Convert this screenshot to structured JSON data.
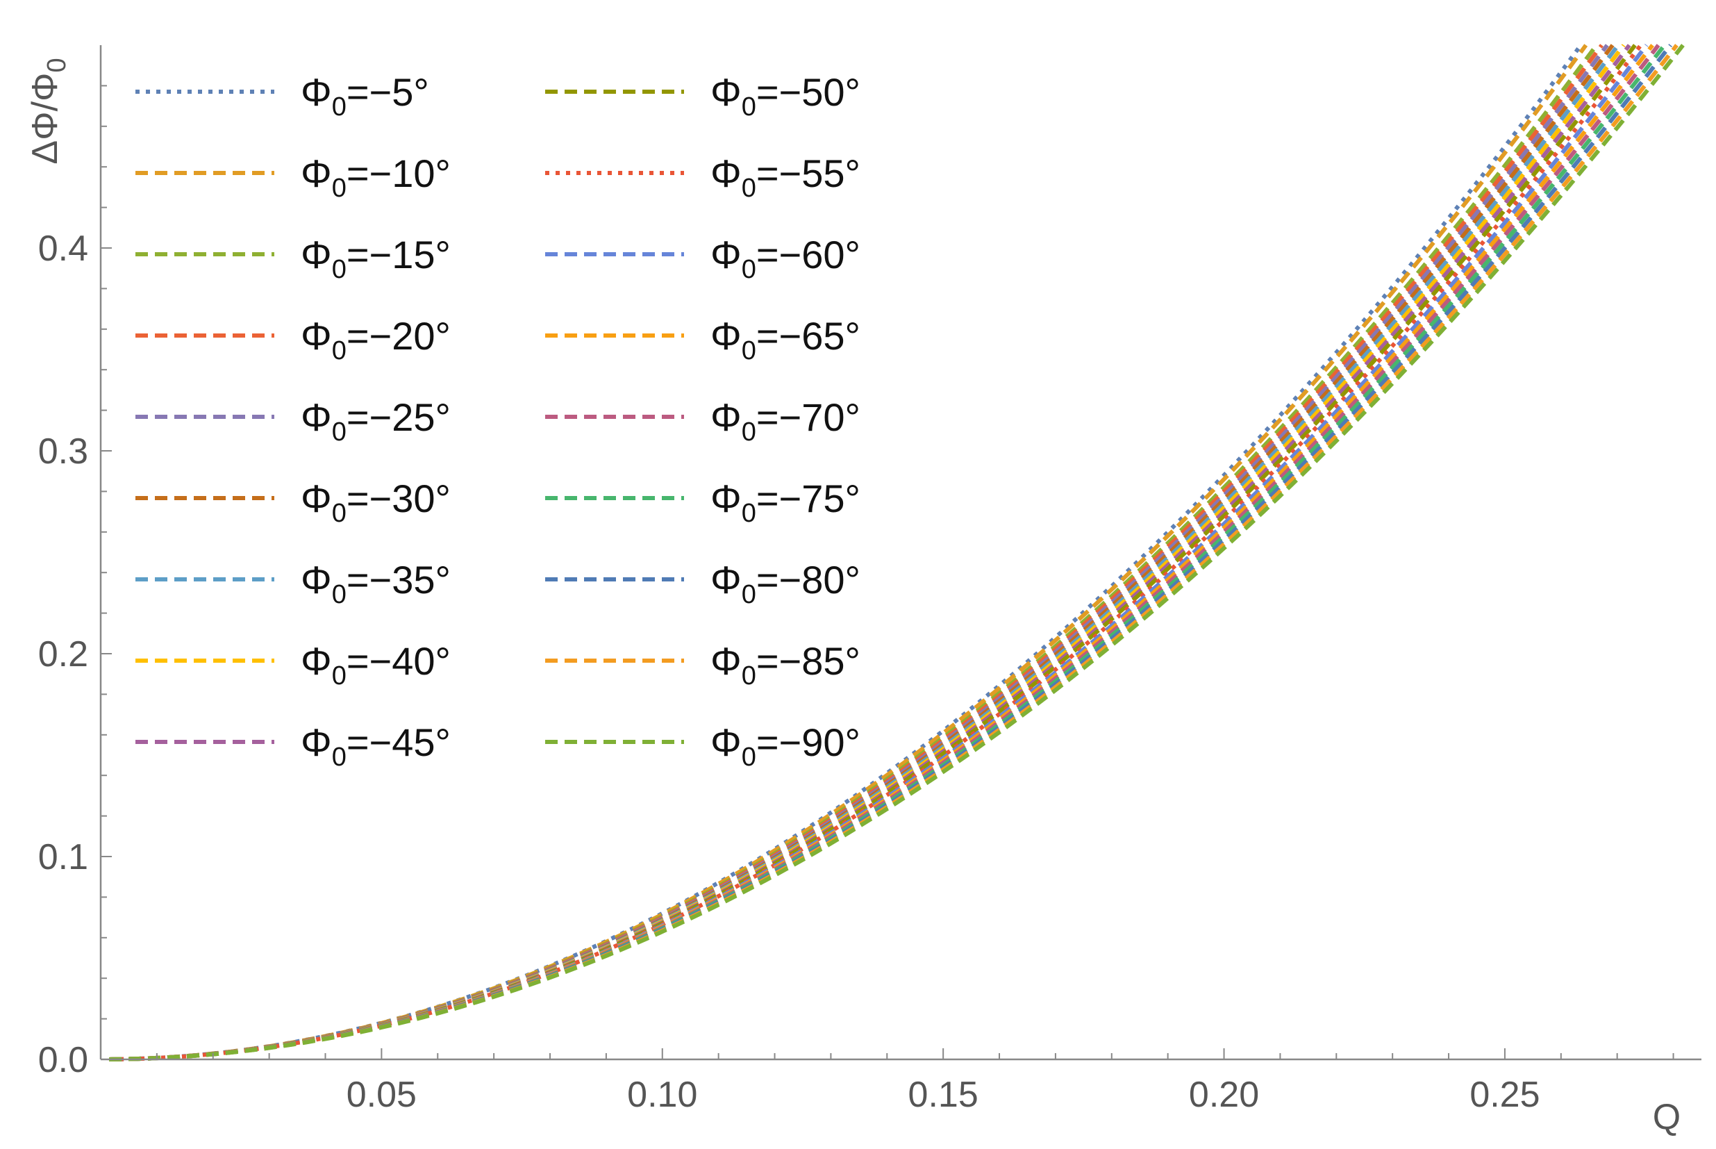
{
  "chart_data": {
    "type": "line",
    "xlabel": "Q",
    "ylabel_main": "ΔΦ/Φ",
    "ylabel_sub": "0",
    "xlim": [
      0,
      0.285
    ],
    "ylim": [
      0,
      0.5
    ],
    "x_ticks": [
      {
        "value": 0.05,
        "label": "0.05"
      },
      {
        "value": 0.1,
        "label": "0.10"
      },
      {
        "value": 0.15,
        "label": "0.15"
      },
      {
        "value": 0.2,
        "label": "0.20"
      },
      {
        "value": 0.25,
        "label": "0.25"
      }
    ],
    "y_ticks": [
      {
        "value": 0.0,
        "label": "0.0"
      },
      {
        "value": 0.1,
        "label": "0.1"
      },
      {
        "value": 0.2,
        "label": "0.2"
      },
      {
        "value": 0.3,
        "label": "0.3"
      },
      {
        "value": 0.4,
        "label": "0.4"
      }
    ],
    "grid": false,
    "legend_position": "top-left",
    "curve_model": "y = k * x^2",
    "series": [
      {
        "name": "Φ0=−5°",
        "label_main": "Φ",
        "label_sub": "0",
        "label_rest": "=−5°",
        "color": "#5e81b5",
        "dash": "dotted",
        "k": 7.2
      },
      {
        "name": "Φ0=−10°",
        "label_main": "Φ",
        "label_sub": "0",
        "label_rest": "=−10°",
        "color": "#e19c24",
        "dash": "dashed",
        "k": 7.15
      },
      {
        "name": "Φ0=−15°",
        "label_main": "Φ",
        "label_sub": "0",
        "label_rest": "=−15°",
        "color": "#8fb032",
        "dash": "dashed",
        "k": 7.05
      },
      {
        "name": "Φ0=−20°",
        "label_main": "Φ",
        "label_sub": "0",
        "label_rest": "=−20°",
        "color": "#eb6235",
        "dash": "dashed",
        "k": 7.0
      },
      {
        "name": "Φ0=−25°",
        "label_main": "Φ",
        "label_sub": "0",
        "label_rest": "=−25°",
        "color": "#8778b3",
        "dash": "dashed",
        "k": 6.95
      },
      {
        "name": "Φ0=−30°",
        "label_main": "Φ",
        "label_sub": "0",
        "label_rest": "=−30°",
        "color": "#c56e1a",
        "dash": "dashed",
        "k": 6.9
      },
      {
        "name": "Φ0=−35°",
        "label_main": "Φ",
        "label_sub": "0",
        "label_rest": "=−35°",
        "color": "#5d9ec7",
        "dash": "dashed",
        "k": 6.85
      },
      {
        "name": "Φ0=−40°",
        "label_main": "Φ",
        "label_sub": "0",
        "label_rest": "=−40°",
        "color": "#ffbf00",
        "dash": "dashed",
        "k": 6.8
      },
      {
        "name": "Φ0=−45°",
        "label_main": "Φ",
        "label_sub": "0",
        "label_rest": "=−45°",
        "color": "#a5609d",
        "dash": "dashed",
        "k": 6.75
      },
      {
        "name": "Φ0=−50°",
        "label_main": "Φ",
        "label_sub": "0",
        "label_rest": "=−50°",
        "color": "#929600",
        "dash": "dashed",
        "k": 6.7
      },
      {
        "name": "Φ0=−55°",
        "label_main": "Φ",
        "label_sub": "0",
        "label_rest": "=−55°",
        "color": "#e95536",
        "dash": "dotted",
        "k": 6.65
      },
      {
        "name": "Φ0=−60°",
        "label_main": "Φ",
        "label_sub": "0",
        "label_rest": "=−60°",
        "color": "#6685d9",
        "dash": "dashed",
        "k": 6.6
      },
      {
        "name": "Φ0=−65°",
        "label_main": "Φ",
        "label_sub": "0",
        "label_rest": "=−65°",
        "color": "#f89f13",
        "dash": "dashed",
        "k": 6.55
      },
      {
        "name": "Φ0=−70°",
        "label_main": "Φ",
        "label_sub": "0",
        "label_rest": "=−70°",
        "color": "#bc5b80",
        "dash": "dashed",
        "k": 6.5
      },
      {
        "name": "Φ0=−75°",
        "label_main": "Φ",
        "label_sub": "0",
        "label_rest": "=−75°",
        "color": "#47b66d",
        "dash": "dashed",
        "k": 6.45
      },
      {
        "name": "Φ0=−80°",
        "label_main": "Φ",
        "label_sub": "0",
        "label_rest": "=−80°",
        "color": "#4f7bb5",
        "dash": "dashed",
        "k": 6.4
      },
      {
        "name": "Φ0=−85°",
        "label_main": "Φ",
        "label_sub": "0",
        "label_rest": "=−85°",
        "color": "#f39c21",
        "dash": "dashed",
        "k": 6.35
      },
      {
        "name": "Φ0=−90°",
        "label_main": "Φ",
        "label_sub": "0",
        "label_rest": "=−90°",
        "color": "#7fb035",
        "dash": "dashed",
        "k": 6.3
      }
    ]
  }
}
